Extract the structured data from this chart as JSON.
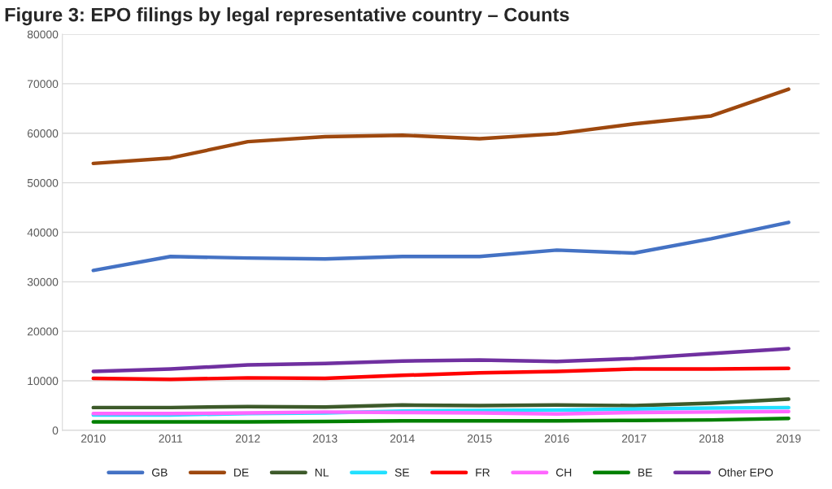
{
  "chart_data": {
    "type": "line",
    "title": "Figure 3: EPO filings by legal representative country – Counts",
    "categories": [
      "2010",
      "2011",
      "2012",
      "2013",
      "2014",
      "2015",
      "2016",
      "2017",
      "2018",
      "2019"
    ],
    "series": [
      {
        "name": "GB",
        "color": "#4472c4",
        "values": [
          32300,
          35100,
          34800,
          34600,
          35100,
          35100,
          36400,
          35800,
          38700,
          42000
        ]
      },
      {
        "name": "DE",
        "color": "#9e480e",
        "values": [
          53900,
          55000,
          58300,
          59300,
          59600,
          58900,
          59900,
          61900,
          63500,
          68900
        ]
      },
      {
        "name": "NL",
        "color": "#3d5a2a",
        "values": [
          4600,
          4600,
          4800,
          4700,
          5100,
          5000,
          5100,
          5000,
          5500,
          6300
        ]
      },
      {
        "name": "SE",
        "color": "#22e0ff",
        "values": [
          3100,
          3100,
          3400,
          3500,
          3900,
          4000,
          4100,
          4300,
          4500,
          4600
        ]
      },
      {
        "name": "FR",
        "color": "#ff0000",
        "values": [
          10500,
          10300,
          10600,
          10500,
          11100,
          11600,
          11900,
          12400,
          12400,
          12500
        ]
      },
      {
        "name": "CH",
        "color": "#ff66ff",
        "values": [
          3400,
          3400,
          3500,
          3700,
          3600,
          3500,
          3300,
          3600,
          3700,
          3800
        ]
      },
      {
        "name": "BE",
        "color": "#008000",
        "values": [
          1700,
          1700,
          1700,
          1800,
          1900,
          1900,
          1900,
          2000,
          2100,
          2400
        ]
      },
      {
        "name": "Other EPO",
        "color": "#7030a0",
        "values": [
          11900,
          12400,
          13200,
          13500,
          14000,
          14200,
          13900,
          14500,
          15500,
          16500
        ]
      }
    ],
    "ylim": [
      0,
      80000
    ],
    "yticks": [
      0,
      10000,
      20000,
      30000,
      40000,
      50000,
      60000,
      70000,
      80000
    ],
    "grid": "y",
    "legend": "bottom",
    "marker": "none",
    "line_style": "solid"
  }
}
